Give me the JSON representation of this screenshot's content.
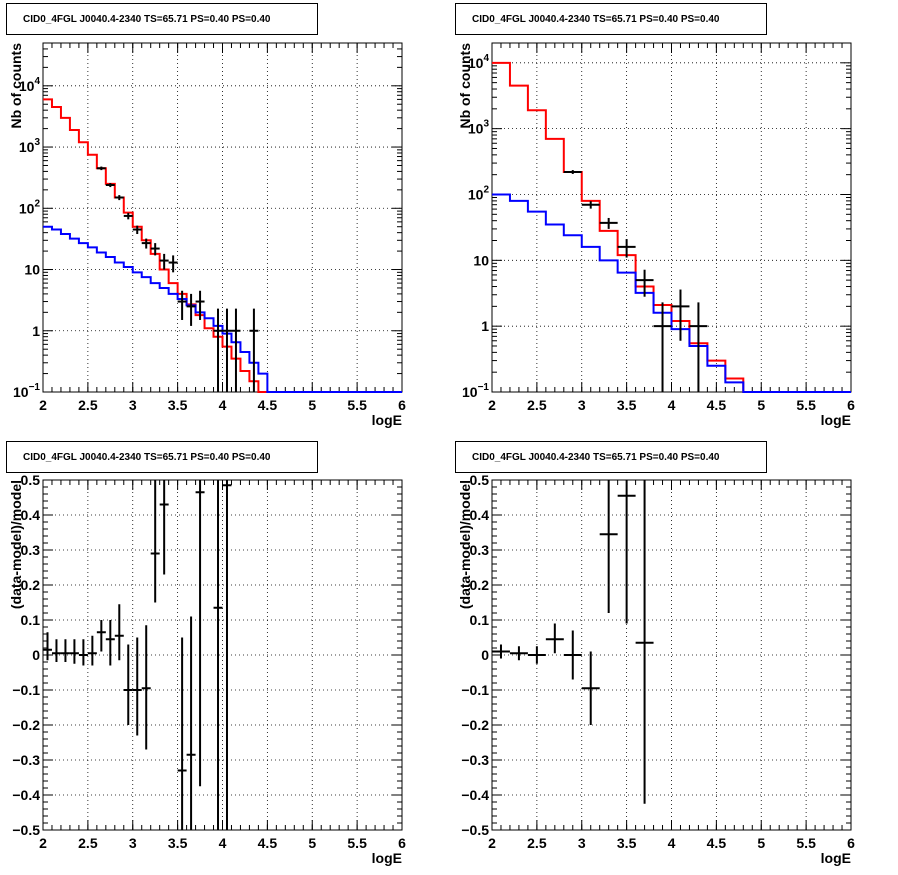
{
  "chart_data": [
    {
      "type": "line",
      "title": "CID0_4FGL J0040.4-2340 TS=65.71 PS=0.40 PS=0.40",
      "xlabel": "logE",
      "ylabel": "Nb of counts",
      "xlim": [
        2,
        6
      ],
      "ylim": [
        0.1,
        50000
      ],
      "yscale": "log",
      "grid": true,
      "xticks": [
        "2",
        "2.5",
        "3",
        "3.5",
        "4",
        "4.5",
        "5",
        "5.5",
        "6"
      ],
      "yticks": [
        {
          "value": 0.1,
          "base": "10",
          "exp": "−1"
        },
        {
          "value": 1,
          "label": "1"
        },
        {
          "value": 10,
          "label": "10"
        },
        {
          "value": 100,
          "base": "10",
          "exp": "2"
        },
        {
          "value": 1000,
          "base": "10",
          "exp": "3"
        },
        {
          "value": 10000,
          "base": "10",
          "exp": "4"
        }
      ],
      "bin_edges": [
        2.0,
        2.1,
        2.2,
        2.3,
        2.4,
        2.5,
        2.6,
        2.7,
        2.8,
        2.9,
        3.0,
        3.1,
        3.2,
        3.3,
        3.4,
        3.5,
        3.6,
        3.7,
        3.8,
        3.9,
        4.0,
        4.1,
        4.2,
        4.3,
        4.4,
        4.5,
        4.6,
        4.7,
        4.8,
        4.9,
        5.0,
        5.1,
        5.2,
        5.3,
        5.4,
        5.5,
        5.6,
        5.7,
        5.8,
        5.9,
        6.0
      ],
      "series": [
        {
          "color": "#ff0000",
          "kind": "step",
          "values": [
            6000,
            4500,
            3000,
            1900,
            1200,
            750,
            450,
            250,
            150,
            85,
            50,
            30,
            18,
            10,
            6,
            4,
            2.7,
            1.8,
            1.1,
            0.8,
            0.55,
            0.35,
            0.22,
            0.15,
            0.1,
            0.1,
            0.1,
            0.1,
            0.1,
            0.1,
            0.1,
            0.1,
            0.1,
            0.1,
            0.1,
            0.1,
            0.1,
            0.1,
            0.1,
            0.1
          ]
        },
        {
          "color": "#0000ff",
          "kind": "step",
          "values": [
            50,
            45,
            38,
            32,
            27,
            23,
            19,
            16,
            13,
            11,
            9,
            7.5,
            6,
            5,
            4,
            3.3,
            2.6,
            2.0,
            1.6,
            1.2,
            0.9,
            0.65,
            0.45,
            0.3,
            0.2,
            0.1,
            0.1,
            0.1,
            0.1,
            0.1,
            0.1,
            0.1,
            0.1,
            0.1,
            0.1,
            0.1,
            0.1,
            0.1,
            0.1,
            0.1
          ]
        },
        {
          "color": "#000000",
          "kind": "points",
          "points": [
            {
              "x": 2.65,
              "y": 450,
              "lo": 420,
              "hi": 480
            },
            {
              "x": 2.75,
              "y": 240,
              "lo": 222,
              "hi": 258
            },
            {
              "x": 2.85,
              "y": 150,
              "lo": 136,
              "hi": 164
            },
            {
              "x": 2.95,
              "y": 75,
              "lo": 66,
              "hi": 84
            },
            {
              "x": 3.05,
              "y": 45,
              "lo": 38,
              "hi": 52
            },
            {
              "x": 3.15,
              "y": 27,
              "lo": 22,
              "hi": 32
            },
            {
              "x": 3.25,
              "y": 22,
              "lo": 17,
              "hi": 27
            },
            {
              "x": 3.35,
              "y": 14,
              "lo": 10,
              "hi": 18
            },
            {
              "x": 3.45,
              "y": 13,
              "lo": 9,
              "hi": 17
            },
            {
              "x": 3.55,
              "y": 3,
              "lo": 1.5,
              "hi": 4.5
            },
            {
              "x": 3.65,
              "y": 2.5,
              "lo": 1.2,
              "hi": 4
            },
            {
              "x": 3.75,
              "y": 3,
              "lo": 1.5,
              "hi": 4.5
            },
            {
              "x": 3.95,
              "y": 1,
              "lo": 0.1,
              "hi": 2.3
            },
            {
              "x": 4.05,
              "y": 1,
              "lo": 0.1,
              "hi": 2.3
            },
            {
              "x": 4.15,
              "y": 1,
              "lo": 0.1,
              "hi": 2.3
            },
            {
              "x": 4.35,
              "y": 1,
              "lo": 0.1,
              "hi": 2.3
            }
          ]
        }
      ]
    },
    {
      "type": "line",
      "title": "CID0_4FGL J0040.4-2340 TS=65.71 PS=0.40 PS=0.40",
      "xlabel": "logE",
      "ylabel": "Nb of counts",
      "xlim": [
        2,
        6
      ],
      "ylim": [
        0.1,
        20000
      ],
      "yscale": "log",
      "grid": true,
      "xticks": [
        "2",
        "2.5",
        "3",
        "3.5",
        "4",
        "4.5",
        "5",
        "5.5",
        "6"
      ],
      "yticks": [
        {
          "value": 0.1,
          "base": "10",
          "exp": "−1"
        },
        {
          "value": 1,
          "label": "1"
        },
        {
          "value": 10,
          "label": "10"
        },
        {
          "value": 100,
          "base": "10",
          "exp": "2"
        },
        {
          "value": 1000,
          "base": "10",
          "exp": "3"
        },
        {
          "value": 10000,
          "base": "10",
          "exp": "4"
        }
      ],
      "bin_edges": [
        2.0,
        2.2,
        2.4,
        2.6,
        2.8,
        3.0,
        3.2,
        3.4,
        3.6,
        3.8,
        4.0,
        4.2,
        4.4,
        4.6,
        4.8,
        5.0,
        5.2,
        5.4,
        5.6,
        5.8,
        6.0
      ],
      "series": [
        {
          "color": "#ff0000",
          "kind": "step",
          "values": [
            10000,
            4500,
            1900,
            700,
            220,
            80,
            28,
            12,
            4,
            2.1,
            1.2,
            0.55,
            0.3,
            0.16,
            0.1,
            0.1,
            0.1,
            0.1,
            0.1,
            0.1
          ]
        },
        {
          "color": "#0000ff",
          "kind": "step",
          "values": [
            100,
            80,
            55,
            35,
            24,
            16,
            10,
            6.5,
            3.2,
            1.6,
            0.9,
            0.5,
            0.25,
            0.14,
            0.1,
            0.1,
            0.1,
            0.1,
            0.1,
            0.1
          ]
        },
        {
          "color": "#000000",
          "kind": "points",
          "points": [
            {
              "x": 2.9,
              "y": 220,
              "lo": 205,
              "hi": 235
            },
            {
              "x": 3.1,
              "y": 70,
              "lo": 61,
              "hi": 79
            },
            {
              "x": 3.3,
              "y": 37,
              "lo": 30,
              "hi": 44
            },
            {
              "x": 3.5,
              "y": 16,
              "lo": 11,
              "hi": 21
            },
            {
              "x": 3.7,
              "y": 5,
              "lo": 2.8,
              "hi": 7.2
            },
            {
              "x": 3.9,
              "y": 1,
              "lo": 0.1,
              "hi": 2.3
            },
            {
              "x": 4.1,
              "y": 2,
              "lo": 0.6,
              "hi": 3.6
            },
            {
              "x": 4.3,
              "y": 1,
              "lo": 0.1,
              "hi": 2.3
            }
          ]
        }
      ]
    },
    {
      "type": "scatter",
      "title": "CID0_4FGL J0040.4-2340 TS=65.71 PS=0.40 PS=0.40",
      "xlabel": "logE",
      "ylabel": "(data-model)/model",
      "xlim": [
        2,
        6
      ],
      "ylim": [
        -0.5,
        0.5
      ],
      "grid": true,
      "xticks": [
        "2",
        "2.5",
        "3",
        "3.5",
        "4",
        "4.5",
        "5",
        "5.5",
        "6"
      ],
      "yticks": [
        {
          "value": -0.5,
          "label": "−0.5"
        },
        {
          "value": -0.4,
          "label": "−0.4"
        },
        {
          "value": -0.3,
          "label": "−0.3"
        },
        {
          "value": -0.2,
          "label": "−0.2"
        },
        {
          "value": -0.1,
          "label": "−0.1"
        },
        {
          "value": 0,
          "label": "0"
        },
        {
          "value": 0.1,
          "label": "0.1"
        },
        {
          "value": 0.2,
          "label": "0.2"
        },
        {
          "value": 0.3,
          "label": "0.3"
        },
        {
          "value": 0.4,
          "label": "0.4"
        },
        {
          "value": 0.5,
          "label": "0.5"
        }
      ],
      "half_width": 0.05,
      "points": [
        {
          "x": 2.05,
          "y": 0.015,
          "lo": -0.015,
          "hi": 0.065
        },
        {
          "x": 2.15,
          "y": 0.005,
          "lo": -0.02,
          "hi": 0.045
        },
        {
          "x": 2.25,
          "y": 0.005,
          "lo": -0.02,
          "hi": 0.045
        },
        {
          "x": 2.35,
          "y": 0.005,
          "lo": -0.025,
          "hi": 0.045
        },
        {
          "x": 2.45,
          "y": 0.0,
          "lo": -0.03,
          "hi": 0.045
        },
        {
          "x": 2.55,
          "y": 0.005,
          "lo": -0.03,
          "hi": 0.055
        },
        {
          "x": 2.65,
          "y": 0.065,
          "lo": 0.01,
          "hi": 0.1
        },
        {
          "x": 2.75,
          "y": 0.045,
          "lo": -0.03,
          "hi": 0.1
        },
        {
          "x": 2.85,
          "y": 0.055,
          "lo": -0.015,
          "hi": 0.145
        },
        {
          "x": 2.95,
          "y": -0.1,
          "lo": -0.2,
          "hi": 0.03
        },
        {
          "x": 3.05,
          "y": -0.1,
          "lo": -0.23,
          "hi": 0.05
        },
        {
          "x": 3.15,
          "y": -0.095,
          "lo": -0.27,
          "hi": 0.085
        },
        {
          "x": 3.25,
          "y": 0.29,
          "lo": 0.15,
          "hi": 0.5
        },
        {
          "x": 3.35,
          "y": 0.43,
          "lo": 0.23,
          "hi": 0.5
        },
        {
          "x": 3.55,
          "y": -0.33,
          "lo": -0.5,
          "hi": 0.05
        },
        {
          "x": 3.65,
          "y": -0.285,
          "lo": -0.5,
          "hi": 0.11
        },
        {
          "x": 3.75,
          "y": 0.465,
          "lo": -0.375,
          "hi": 0.5
        },
        {
          "x": 3.95,
          "y": 0.135,
          "lo": -0.5,
          "hi": 0.5
        },
        {
          "x": 4.05,
          "y": 0.485,
          "lo": -0.5,
          "hi": 0.5
        }
      ]
    },
    {
      "type": "scatter",
      "title": "CID0_4FGL J0040.4-2340 TS=65.71 PS=0.40 PS=0.40",
      "xlabel": "logE",
      "ylabel": "(data-model)/model",
      "xlim": [
        2,
        6
      ],
      "ylim": [
        -0.5,
        0.5
      ],
      "grid": true,
      "xticks": [
        "2",
        "2.5",
        "3",
        "3.5",
        "4",
        "4.5",
        "5",
        "5.5",
        "6"
      ],
      "yticks": [
        {
          "value": -0.5,
          "label": "−0.5"
        },
        {
          "value": -0.4,
          "label": "−0.4"
        },
        {
          "value": -0.3,
          "label": "−0.3"
        },
        {
          "value": -0.2,
          "label": "−0.2"
        },
        {
          "value": -0.1,
          "label": "−0.1"
        },
        {
          "value": 0,
          "label": "0"
        },
        {
          "value": 0.1,
          "label": "0.1"
        },
        {
          "value": 0.2,
          "label": "0.2"
        },
        {
          "value": 0.3,
          "label": "0.3"
        },
        {
          "value": 0.4,
          "label": "0.4"
        },
        {
          "value": 0.5,
          "label": "0.5"
        }
      ],
      "half_width": 0.1,
      "points": [
        {
          "x": 2.1,
          "y": 0.01,
          "lo": -0.01,
          "hi": 0.03
        },
        {
          "x": 2.3,
          "y": 0.005,
          "lo": -0.015,
          "hi": 0.025
        },
        {
          "x": 2.5,
          "y": 0.0,
          "lo": -0.025,
          "hi": 0.025
        },
        {
          "x": 2.7,
          "y": 0.045,
          "lo": 0.005,
          "hi": 0.09
        },
        {
          "x": 2.9,
          "y": 0.0,
          "lo": -0.07,
          "hi": 0.07
        },
        {
          "x": 3.1,
          "y": -0.095,
          "lo": -0.2,
          "hi": 0.01
        },
        {
          "x": 3.3,
          "y": 0.345,
          "lo": 0.12,
          "hi": 0.5
        },
        {
          "x": 3.5,
          "y": 0.455,
          "lo": 0.09,
          "hi": 0.5
        },
        {
          "x": 3.7,
          "y": 0.035,
          "lo": -0.425,
          "hi": 0.5
        }
      ]
    }
  ]
}
